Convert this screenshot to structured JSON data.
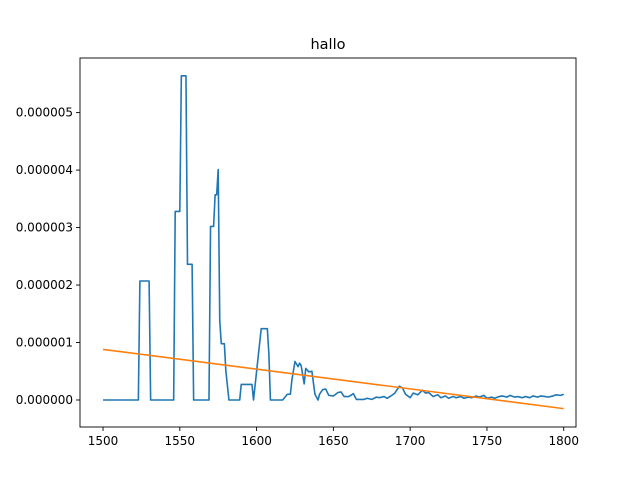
{
  "chart_data": {
    "type": "line",
    "title": "hallo",
    "xlabel": "",
    "ylabel": "",
    "xlim": [
      1485,
      1808
    ],
    "ylim": [
      -4.7e-07,
      5.95e-06
    ],
    "grid": false,
    "legend": "none",
    "x_ticks": [
      1500,
      1550,
      1600,
      1650,
      1700,
      1750,
      1800
    ],
    "x_tick_labels": [
      "1500",
      "1550",
      "1600",
      "1650",
      "1700",
      "1750",
      "1800"
    ],
    "y_ticks": [
      0.0,
      1e-06,
      2e-06,
      3e-06,
      4e-06,
      5e-06
    ],
    "y_tick_labels": [
      "0.000000",
      "0.000001",
      "0.000002",
      "0.000003",
      "0.000004",
      "0.000005"
    ],
    "series": [
      {
        "color": "#1f77b4",
        "kind": "step-line",
        "x": [
          1500,
          1523,
          1524,
          1530,
          1531,
          1546,
          1547,
          1550,
          1551,
          1554,
          1555,
          1558,
          1559,
          1569,
          1570,
          1572,
          1573,
          1574,
          1575,
          1576,
          1577,
          1579,
          1580,
          1582,
          1589,
          1590,
          1597,
          1598,
          1603,
          1607,
          1608,
          1609,
          1617,
          1620,
          1622,
          1623,
          1625,
          1627,
          1628,
          1629,
          1631,
          1632,
          1634,
          1636,
          1637,
          1638,
          1640,
          1641,
          1643,
          1645,
          1647,
          1650,
          1653,
          1655,
          1657,
          1660,
          1663,
          1665,
          1670,
          1672,
          1675,
          1678,
          1680,
          1683,
          1685,
          1688,
          1690,
          1693,
          1695,
          1697,
          1700,
          1702,
          1705,
          1708,
          1710,
          1712,
          1715,
          1718,
          1720,
          1723,
          1725,
          1728,
          1730,
          1733,
          1735,
          1738,
          1740,
          1743,
          1745,
          1748,
          1750,
          1753,
          1755,
          1758,
          1760,
          1763,
          1765,
          1768,
          1770,
          1773,
          1775,
          1778,
          1780,
          1783,
          1785,
          1788,
          1790,
          1793,
          1795,
          1798,
          1800
        ],
        "y": [
          0.0,
          0.0,
          2.07e-06,
          2.07e-06,
          0.0,
          0.0,
          3.28e-06,
          3.28e-06,
          5.64e-06,
          5.64e-06,
          2.36e-06,
          2.36e-06,
          0.0,
          0.0,
          3.02e-06,
          3.02e-06,
          3.57e-06,
          3.57e-06,
          4.01e-06,
          1.38e-06,
          9.8e-07,
          9.8e-07,
          5e-07,
          0.0,
          0.0,
          2.7e-07,
          2.7e-07,
          0.0,
          1.24e-06,
          1.24e-06,
          8e-07,
          0.0,
          0.0,
          1e-07,
          1e-07,
          3.5e-07,
          6.7e-07,
          5.8e-07,
          6.4e-07,
          6e-07,
          2.8e-07,
          5.5e-07,
          4.9e-07,
          5e-07,
          3e-07,
          1e-07,
          0.0,
          1e-07,
          1.8e-07,
          1.9e-07,
          8e-08,
          7e-08,
          1.3e-07,
          1.4e-07,
          6e-08,
          6e-08,
          1.1e-07,
          1e-08,
          1e-08,
          3e-08,
          1e-08,
          5e-08,
          4e-08,
          6e-08,
          3e-08,
          8e-08,
          1.2e-07,
          2.4e-07,
          2.1e-07,
          1e-07,
          4e-08,
          1.2e-07,
          9e-08,
          1.7e-07,
          1.2e-07,
          1.3e-07,
          6e-08,
          9e-08,
          4e-08,
          7e-08,
          3e-08,
          6e-08,
          4e-08,
          6e-08,
          3e-08,
          5e-08,
          4e-08,
          7e-08,
          5e-08,
          8e-08,
          3e-08,
          5e-08,
          3e-08,
          6e-08,
          7e-08,
          5e-08,
          8e-08,
          5e-08,
          6e-08,
          4e-08,
          6e-08,
          4e-08,
          7e-08,
          5e-08,
          7e-08,
          6e-08,
          5e-08,
          7e-08,
          9e-08,
          8e-08,
          1e-07
        ]
      },
      {
        "color": "#ff7f0e",
        "kind": "line",
        "x": [
          1500,
          1800
        ],
        "y": [
          8.8e-07,
          -1.5e-07
        ]
      }
    ]
  }
}
